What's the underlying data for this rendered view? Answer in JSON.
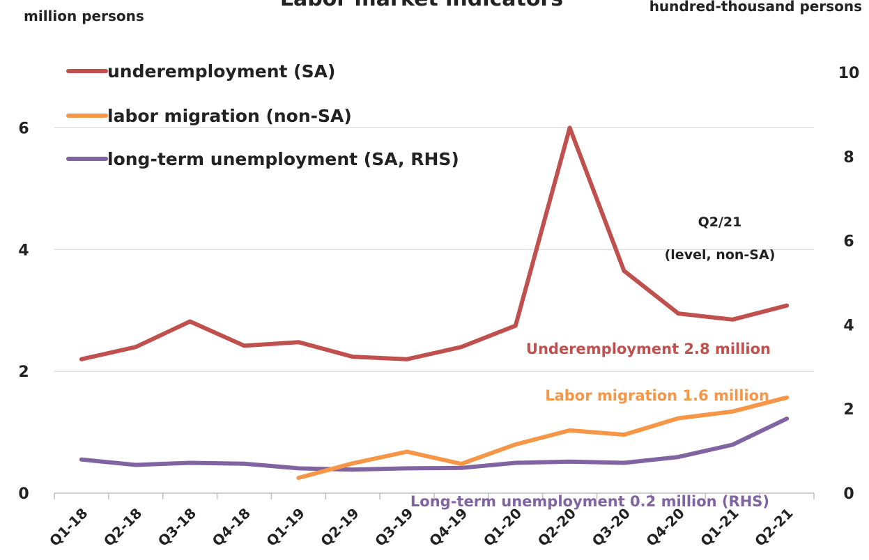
{
  "chart_data": {
    "type": "line",
    "title": "Labor market indicators",
    "ylabel_left": "million persons",
    "ylabel_right": "hundred-thousand persons",
    "ylim_left": [
      0,
      7
    ],
    "ylim_right": [
      0,
      10
    ],
    "yticks_left": [
      "0",
      "2",
      "4",
      "6"
    ],
    "yticks_right": [
      "0",
      "2",
      "4",
      "6",
      "8",
      "10"
    ],
    "grid": true,
    "legend_placement": "top-left",
    "categories": [
      "Q1-18",
      "Q2-18",
      "Q3-18",
      "Q4-18",
      "Q1-19",
      "Q2-19",
      "Q3-19",
      "Q4-19",
      "Q1-20",
      "Q2-20",
      "Q3-20",
      "Q4-20",
      "Q1-21",
      "Q2-21"
    ],
    "series": [
      {
        "name": "underemployment (SA)",
        "axis": "left",
        "color": "#c0504d",
        "values": [
          2.2,
          2.4,
          2.82,
          2.42,
          2.48,
          2.24,
          2.2,
          2.4,
          2.75,
          6.0,
          3.65,
          2.95,
          2.85,
          3.08
        ]
      },
      {
        "name": "labor migration (non-SA)",
        "axis": "left",
        "color": "#f79646",
        "values": [
          null,
          null,
          null,
          null,
          0.25,
          0.49,
          0.68,
          0.48,
          0.8,
          1.03,
          0.96,
          1.23,
          1.34,
          1.57
        ]
      },
      {
        "name": "long-term unemployment (SA, RHS)",
        "axis": "right",
        "color": "#8064a2",
        "values": [
          0.8,
          0.67,
          0.72,
          0.7,
          0.59,
          0.56,
          0.59,
          0.6,
          0.72,
          0.75,
          0.72,
          0.86,
          1.15,
          1.77
        ]
      }
    ],
    "annotations": {
      "note_line1": "Q2/21",
      "note_line2": "(level, non-SA)",
      "underemployment": "Underemployment 2.8 million",
      "migration": "Labor migration 1.6 million",
      "longterm": "Long-term unemployment 0.2 million (RHS)"
    }
  }
}
